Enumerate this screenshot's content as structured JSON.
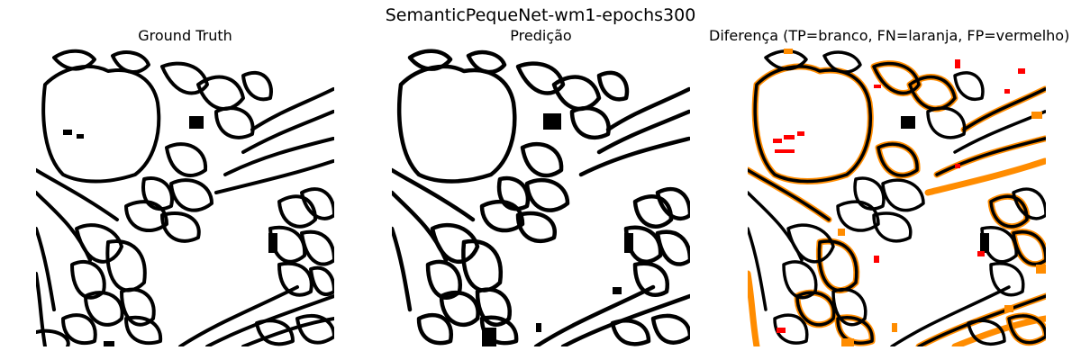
{
  "figure": {
    "suptitle": "SemanticPequeNet-wm1-epochs300"
  },
  "panels": [
    {
      "title": "Ground Truth"
    },
    {
      "title": "Predição"
    },
    {
      "title": "Diferença (TP=branco, FN=laranja, FP=vermelho)"
    }
  ],
  "colors": {
    "background": "#ffffff",
    "membrane": "#000000",
    "false_negative": "#ff8c00",
    "false_positive": "#ff0000"
  }
}
